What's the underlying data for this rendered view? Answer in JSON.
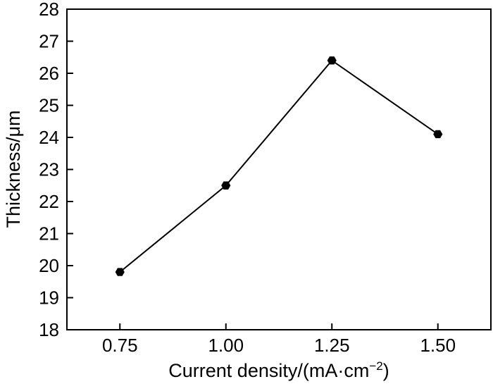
{
  "chart_data": {
    "type": "line",
    "title": "",
    "xlabel": "Current density/(mA·cm",
    "xlabel_superscript": "−2",
    "xlabel_suffix": ")",
    "ylabel": "Thickness/μm",
    "x": [
      0.75,
      1.0,
      1.25,
      1.5
    ],
    "x_tick_labels": [
      "0.75",
      "1.00",
      "1.25",
      "1.50"
    ],
    "y_ticks": [
      18,
      19,
      20,
      21,
      22,
      23,
      24,
      25,
      26,
      27,
      28
    ],
    "y_tick_labels": [
      "18",
      "19",
      "20",
      "21",
      "22",
      "23",
      "24",
      "25",
      "26",
      "27",
      "28"
    ],
    "xlim": [
      0.625,
      1.625
    ],
    "ylim": [
      18,
      28
    ],
    "series": [
      {
        "values": [
          19.8,
          22.5,
          26.4,
          24.1
        ],
        "color": "#000000",
        "marker": "hexagon"
      }
    ],
    "grid": false,
    "legend": "none"
  }
}
